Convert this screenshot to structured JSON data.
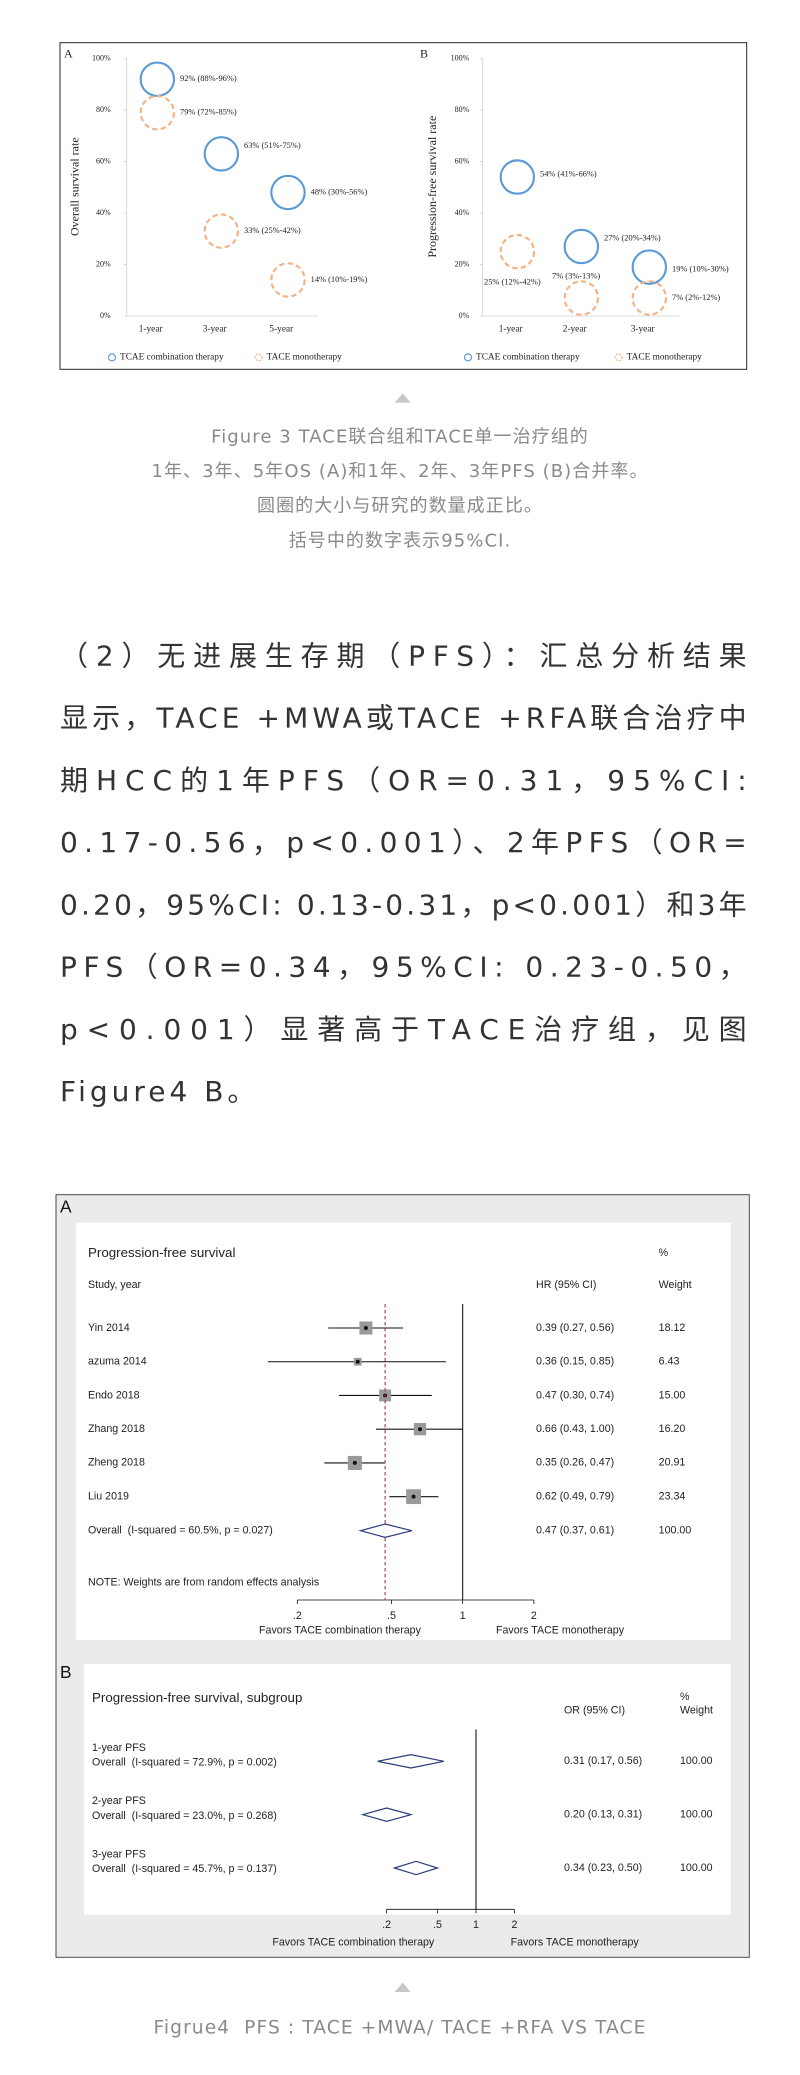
{
  "figure3": {
    "charts": [
      {
        "type": "bubble",
        "panel": "A",
        "y_label": "Overall survival rate",
        "categories": [
          "1-year",
          "3-year",
          "5-year"
        ],
        "ylim": [
          0,
          100
        ],
        "yticks": [
          {
            "value": 0,
            "label": "0%"
          },
          {
            "value": 20,
            "label": "20%"
          },
          {
            "value": 40,
            "label": "40%"
          },
          {
            "value": 60,
            "label": "60%"
          },
          {
            "value": 80,
            "label": "80%"
          },
          {
            "value": 100,
            "label": "100%"
          }
        ],
        "series": [
          {
            "name": "TCAE combination therapy",
            "color": "#5b9bd5",
            "line_style": "solid",
            "values": [
              92,
              63,
              48
            ],
            "value_labels": [
              "92% (88%-96%)",
              "63% (51%-75%)",
              "48% (30%-56%)"
            ]
          },
          {
            "name": "TACE monotherapy",
            "color": "#f4b183",
            "line_style": "dashed",
            "values": [
              79,
              33,
              14
            ],
            "value_labels": [
              "79% (72%-85%)",
              "33% (25%-42%)",
              "14% (10%-19%)"
            ]
          }
        ]
      },
      {
        "type": "bubble",
        "panel": "B",
        "y_label": "Progression-free survival rate",
        "categories": [
          "1-year",
          "2-year",
          "3-year"
        ],
        "ylim": [
          0,
          100
        ],
        "yticks": [
          {
            "value": 0,
            "label": "0%"
          },
          {
            "value": 20,
            "label": "20%"
          },
          {
            "value": 40,
            "label": "40%"
          },
          {
            "value": 60,
            "label": "60%"
          },
          {
            "value": 80,
            "label": "80%"
          },
          {
            "value": 100,
            "label": "100%"
          }
        ],
        "series": [
          {
            "name": "TCAE combination therapy",
            "color": "#5b9bd5",
            "line_style": "solid",
            "values": [
              54,
              27,
              19
            ],
            "value_labels": [
              "54% (41%-66%)",
              "27% (20%-34%)",
              "19% (10%-30%)"
            ]
          },
          {
            "name": "TACE monotherapy",
            "color": "#f4b183",
            "line_style": "dashed",
            "values": [
              25,
              7,
              7
            ],
            "value_labels": [
              "25% (12%-42%)",
              "7% (3%-13%)",
              "7% (2%-12%)"
            ]
          }
        ]
      }
    ],
    "caption": [
      "Figure 3 TACE联合组和TACE单一治疗组的",
      "1年、3年、5年OS (A)和1年、2年、3年PFS (B)合并率。",
      "圆圈的大小与研究的数量成正比。",
      "括号中的数字表示95%CI."
    ]
  },
  "paragraph": [
    "（2）无进展生存期（PFS）：汇总分析结果",
    "显示，TACE +MWA或TACE +RFA联合治疗中",
    "期HCC的1年PFS（OR=0.31，95%CI:",
    "0.17-0.56，p<0.001）、2年PFS（OR=",
    "0.20，95%CI: 0.13-0.31，p<0.001）和3年",
    "PFS（OR=0.34，95%CI: 0.23-0.50，",
    "p<0.001）显著高于TACE治疗组，见图",
    "Figure4 B。"
  ],
  "figure4": {
    "panels": [
      {
        "type": "forest",
        "panel": "A",
        "title": "Progression-free survival",
        "columns": {
          "study": "Study, year",
          "estimate": "HR (95% CI)",
          "weight_pct": "%",
          "weight": "Weight"
        },
        "rows": [
          {
            "label": "Yin 2014",
            "estimate": 0.39,
            "lower": 0.27,
            "upper": 0.56,
            "ci_label": "0.39 (0.27, 0.56)",
            "weight": 18.12
          },
          {
            "label": "azuma 2014",
            "estimate": 0.36,
            "lower": 0.15,
            "upper": 0.85,
            "ci_label": "0.36 (0.15, 0.85)",
            "weight": 6.43
          },
          {
            "label": "Endo 2018",
            "estimate": 0.47,
            "lower": 0.3,
            "upper": 0.74,
            "ci_label": "0.47 (0.30, 0.74)",
            "weight": {
              "value": 15,
              "label": "15.00"
            }
          },
          {
            "label": "Zhang 2018",
            "estimate": 0.66,
            "lower": 0.43,
            "upper": 1.0,
            "ci_label": "0.66 (0.43, 1.00)",
            "weight": {
              "value": 16.2,
              "label": "16.20"
            }
          },
          {
            "label": "Zheng 2018",
            "estimate": 0.35,
            "lower": 0.26,
            "upper": 0.47,
            "ci_label": "0.35 (0.26, 0.47)",
            "weight": 20.91
          },
          {
            "label": "Liu 2019",
            "estimate": 0.62,
            "lower": 0.49,
            "upper": 0.79,
            "ci_label": "0.62 (0.49, 0.79)",
            "weight": 23.34
          }
        ],
        "overall": {
          "label": "Overall  (I-squared = 60.5%, p = 0.027)",
          "estimate": 0.47,
          "lower": 0.37,
          "upper": 0.61,
          "ci_label": "0.47 (0.37, 0.61)",
          "weight": {
            "value": 100,
            "label": "100.00"
          }
        },
        "note": "NOTE: Weights are from random effects analysis",
        "xscale": "log",
        "xticks": [
          {
            "value": 0.2,
            "label": ".2"
          },
          {
            "value": 0.5,
            "label": ".5"
          },
          1,
          2
        ],
        "favors": [
          "Favors TACE combination therapy",
          "Favors TACE monotherapy"
        ]
      },
      {
        "type": "forest",
        "panel": "B",
        "title": "Progression-free survival, subgroup",
        "columns": {
          "estimate": "OR (95% CI)",
          "weight_pct": "%",
          "weight": "Weight"
        },
        "rows": [
          {
            "label": "1-year PFS",
            "sublabel": "Overall  (I-squared = 72.9%, p = 0.002)",
            "estimate": 0.31,
            "lower": 0.17,
            "upper": 0.56,
            "ci_label": "0.31 (0.17, 0.56)",
            "weight": {
              "value": 100,
              "label": "100.00"
            }
          },
          {
            "label": "2-year PFS",
            "sublabel": "Overall  (I-squared = 23.0%, p = 0.268)",
            "estimate": 0.2,
            "lower": 0.13,
            "upper": 0.31,
            "ci_label": "0.20 (0.13, 0.31)",
            "weight": {
              "value": 100,
              "label": "100.00"
            }
          },
          {
            "label": "3-year PFS",
            "sublabel": "Overall  (I-squared = 45.7%, p = 0.137)",
            "estimate": 0.34,
            "lower": 0.23,
            "upper": 0.5,
            "ci_label": "0.34 (0.23, 0.50)",
            "weight": {
              "value": 100,
              "label": "100.00"
            }
          }
        ],
        "xscale": "log",
        "xticks": [
          {
            "value": 0.2,
            "label": ".2"
          },
          {
            "value": 0.5,
            "label": ".5"
          },
          1,
          2
        ],
        "favors": [
          "Favors TACE combination therapy",
          "Favors TACE monotherapy"
        ]
      }
    ],
    "caption": "Figrue4  PFS : TACE +MWA/ TACE +RFA VS TACE"
  }
}
